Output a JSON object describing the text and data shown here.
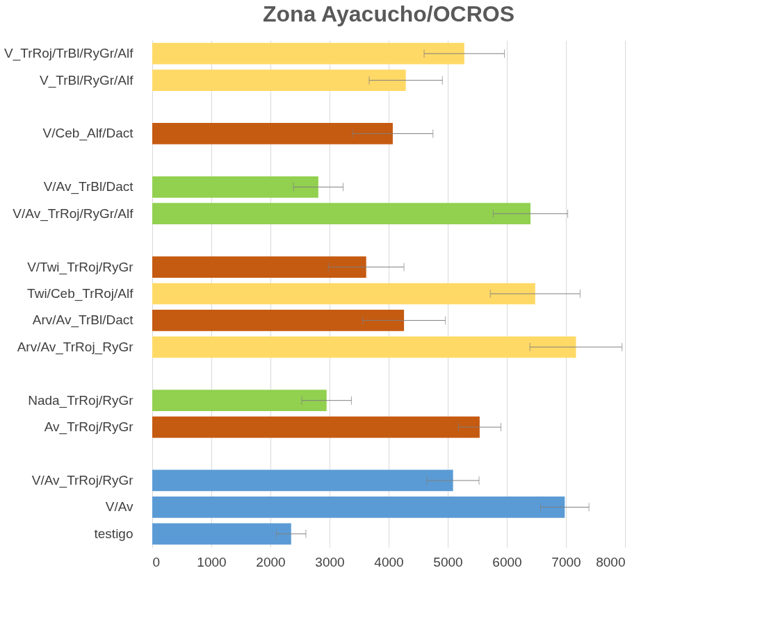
{
  "chart_data": {
    "type": "bar",
    "orientation": "horizontal",
    "title": "Zona Ayacucho/OCROS",
    "categories": [
      "V_TrRoj/TrBl/RyGr/Alf",
      "V_TrBl/RyGr/Alf",
      null,
      "V/Ceb_Alf/Dact",
      null,
      "V/Av_TrBl/Dact",
      "V/Av_TrRoj/RyGr/Alf",
      null,
      "V/Twi_TrRoj/RyGr",
      "Twi/Ceb_TrRoj/Alf",
      "Arv/Av_TrBl/Dact",
      "Arv/Av_TrRoj_RyGr",
      null,
      "Nada_TrRoj/RyGr",
      "Av_TrRoj/RyGr",
      null,
      "V/Av_TrRoj/RyGr",
      "V/Av",
      "testigo"
    ],
    "values": [
      5280,
      4290,
      null,
      4070,
      null,
      2810,
      6400,
      null,
      3620,
      6480,
      4260,
      7170,
      null,
      2950,
      5540,
      null,
      5090,
      6980,
      2350
    ],
    "errors": [
      680,
      620,
      null,
      680,
      null,
      420,
      630,
      null,
      640,
      760,
      700,
      780,
      null,
      420,
      360,
      null,
      440,
      410,
      250
    ],
    "colors": [
      "#ffd966",
      "#ffd966",
      null,
      "#c55a11",
      null,
      "#92d050",
      "#92d050",
      null,
      "#c55a11",
      "#ffd966",
      "#c55a11",
      "#ffd966",
      null,
      "#92d050",
      "#c55a11",
      null,
      "#5b9bd5",
      "#5b9bd5",
      "#5b9bd5"
    ],
    "xlim": [
      0,
      8000
    ],
    "xticks": [
      0,
      1000,
      2000,
      3000,
      4000,
      5000,
      6000,
      7000,
      8000
    ],
    "grid": "x"
  }
}
